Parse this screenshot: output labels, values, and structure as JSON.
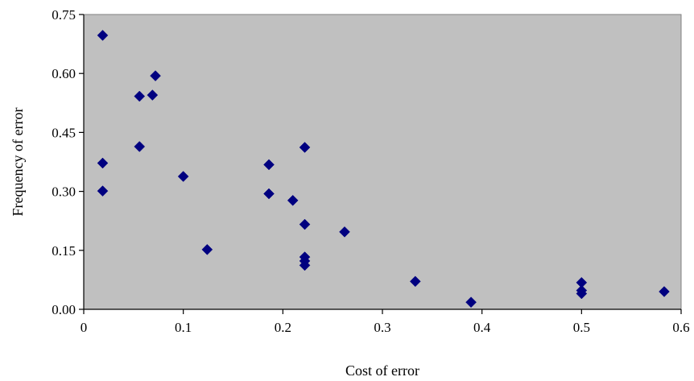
{
  "chart_data": {
    "type": "scatter",
    "title": "",
    "xlabel": "Cost of error",
    "ylabel": "Frequency of error",
    "xlim": [
      0,
      0.6
    ],
    "ylim": [
      0,
      0.75
    ],
    "x_ticks": [
      0,
      0.1,
      0.2,
      0.3,
      0.4,
      0.5,
      0.6
    ],
    "x_tick_labels": [
      "0",
      "0.1",
      "0.2",
      "0.3",
      "0.4",
      "0.5",
      "0.6"
    ],
    "y_ticks": [
      0,
      0.15,
      0.3,
      0.45,
      0.6,
      0.75
    ],
    "y_tick_labels": [
      "0.00",
      "0.15",
      "0.30",
      "0.45",
      "0.60",
      "0.75"
    ],
    "grid": false,
    "legend": "none",
    "marker": "diamond",
    "plot_background": "#c0c0c0",
    "marker_color": "#000080",
    "series": [
      {
        "points": [
          {
            "x": 0.019,
            "y": 0.697
          },
          {
            "x": 0.019,
            "y": 0.372
          },
          {
            "x": 0.019,
            "y": 0.301
          },
          {
            "x": 0.056,
            "y": 0.542
          },
          {
            "x": 0.056,
            "y": 0.414
          },
          {
            "x": 0.069,
            "y": 0.545
          },
          {
            "x": 0.072,
            "y": 0.594
          },
          {
            "x": 0.1,
            "y": 0.338
          },
          {
            "x": 0.124,
            "y": 0.152
          },
          {
            "x": 0.186,
            "y": 0.368
          },
          {
            "x": 0.186,
            "y": 0.294
          },
          {
            "x": 0.21,
            "y": 0.277
          },
          {
            "x": 0.222,
            "y": 0.412
          },
          {
            "x": 0.222,
            "y": 0.216
          },
          {
            "x": 0.222,
            "y": 0.133
          },
          {
            "x": 0.222,
            "y": 0.123
          },
          {
            "x": 0.222,
            "y": 0.112
          },
          {
            "x": 0.262,
            "y": 0.197
          },
          {
            "x": 0.333,
            "y": 0.071
          },
          {
            "x": 0.389,
            "y": 0.018
          },
          {
            "x": 0.5,
            "y": 0.068
          },
          {
            "x": 0.5,
            "y": 0.048
          },
          {
            "x": 0.5,
            "y": 0.04
          },
          {
            "x": 0.583,
            "y": 0.045
          }
        ]
      }
    ]
  }
}
